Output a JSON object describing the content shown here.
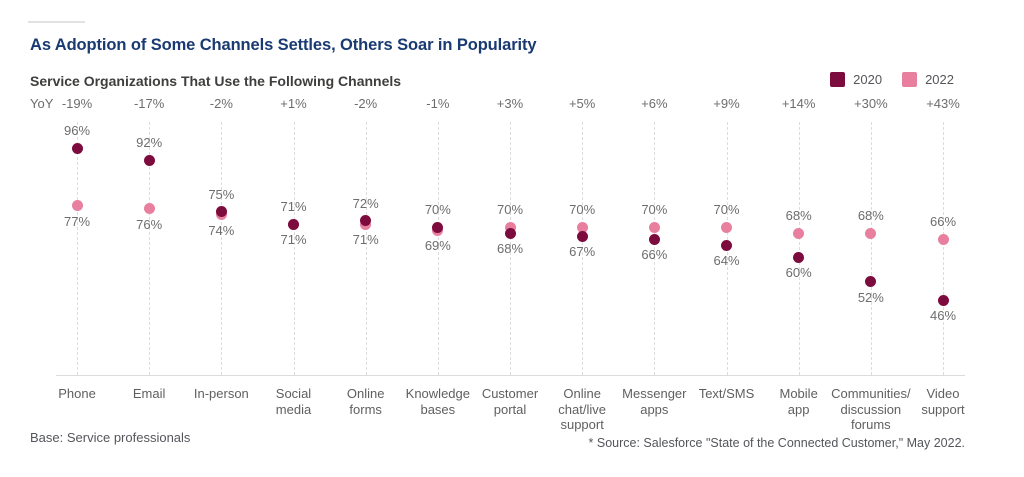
{
  "page": {
    "title": "As Adoption of Some Channels Settles, Others Soar in Popularity",
    "subtitle": "Service Organizations That Use the Following Channels",
    "yoy_label": "YoY",
    "base_note": "Base: Service professionals",
    "source_note": "* Source: Salesforce \"State of the Connected Customer,\" May 2022."
  },
  "colors": {
    "title_navy": "#1a3a72",
    "series_2020": "#7d0c3e",
    "series_2022": "#e87f9f"
  },
  "legend": [
    {
      "label": "2020",
      "color": "#7d0c3e"
    },
    {
      "label": "2022",
      "color": "#e87f9f"
    }
  ],
  "chart_data": {
    "type": "scatter",
    "title": "Service Organizations That Use the Following Channels",
    "value_suffix": "%",
    "categories": [
      [
        "Phone"
      ],
      [
        "Email"
      ],
      [
        "In-person"
      ],
      [
        "Social",
        "media"
      ],
      [
        "Online",
        "forms"
      ],
      [
        "Knowledge",
        "bases"
      ],
      [
        "Customer",
        "portal"
      ],
      [
        "Online",
        "chat/live",
        "support"
      ],
      [
        "Messenger",
        "apps"
      ],
      [
        "Text/SMS"
      ],
      [
        "Mobile",
        "app"
      ],
      [
        "Communities/",
        "discussion",
        "forums"
      ],
      [
        "Video",
        "support"
      ]
    ],
    "yoy": [
      "-19%",
      "-17%",
      "-2%",
      "+1%",
      "-2%",
      "-1%",
      "+3%",
      "+5%",
      "+6%",
      "+9%",
      "+14%",
      "+30%",
      "+43%"
    ],
    "series": [
      {
        "name": "2020",
        "color": "#7d0c3e",
        "values": [
          96,
          92,
          75,
          71,
          72,
          70,
          68,
          67,
          66,
          64,
          60,
          52,
          46
        ]
      },
      {
        "name": "2022",
        "color": "#e87f9f",
        "values": [
          77,
          76,
          74,
          71,
          71,
          69,
          70,
          70,
          70,
          70,
          68,
          68,
          66
        ]
      }
    ],
    "ylim": [
      20,
      100
    ],
    "grid": "vertical-dashed",
    "legend_position": "top-right"
  }
}
